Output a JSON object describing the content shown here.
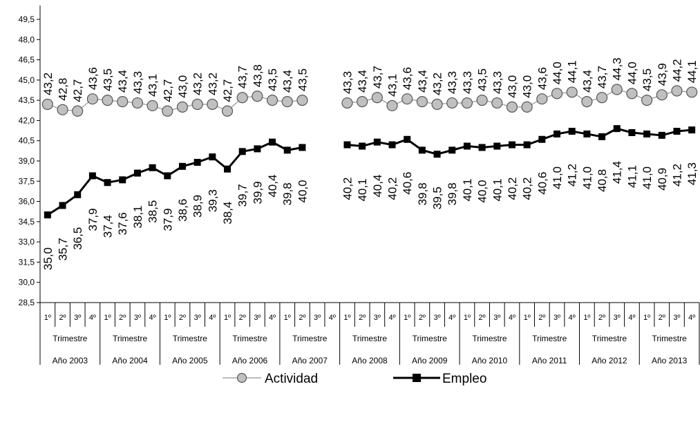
{
  "chart_data": {
    "type": "line",
    "title": "",
    "xlabel": "",
    "ylabel": "",
    "ylim": [
      28.5,
      49.5
    ],
    "yticks": [
      "28,5",
      "30,0",
      "31,5",
      "33,0",
      "34,5",
      "36,0",
      "37,5",
      "39,0",
      "40,5",
      "42,0",
      "43,5",
      "45,0",
      "46,5",
      "48,0",
      "49,5"
    ],
    "legend_position": "bottom",
    "grid": false,
    "quarter_labels": [
      "1º",
      "2º",
      "3º",
      "4º"
    ],
    "group_sublabel": "Trimestre",
    "years": [
      "Año 2003",
      "Año 2004",
      "Año 2005",
      "Año 2006",
      "Año 2007",
      "Año 2008",
      "Año 2009",
      "Año 2010",
      "Año 2011",
      "Año  2012",
      "Año  2013"
    ],
    "series": [
      {
        "name": "Actividad",
        "marker": "circle",
        "line_color": "#a6a6a6",
        "marker_fill": "#c0c0c0",
        "values": [
          43.2,
          42.8,
          42.7,
          43.6,
          43.5,
          43.4,
          43.3,
          43.1,
          42.7,
          43.0,
          43.2,
          43.2,
          42.7,
          43.7,
          43.8,
          43.5,
          43.4,
          43.5,
          null,
          null,
          43.3,
          43.4,
          43.7,
          43.1,
          43.6,
          43.4,
          43.2,
          43.3,
          43.3,
          43.5,
          43.3,
          43.0,
          43.0,
          43.6,
          44.0,
          44.1,
          43.4,
          43.7,
          44.3,
          44.0,
          43.5,
          43.9,
          44.2,
          44.1
        ],
        "labels": [
          "43,2",
          "42,8",
          "42,7",
          "43,6",
          "43,5",
          "43,4",
          "43,3",
          "43,1",
          "42,7",
          "43,0",
          "43,2",
          "43,2",
          "42,7",
          "43,7",
          "43,8",
          "43,5",
          "43,4",
          "43,5",
          "",
          "",
          "43,3",
          "43,4",
          "43,7",
          "43,1",
          "43,6",
          "43,4",
          "43,2",
          "43,3",
          "43,3",
          "43,5",
          "43,3",
          "43,0",
          "43,0",
          "43,6",
          "44,0",
          "44,1",
          "43,4",
          "43,7",
          "44,3",
          "44,0",
          "43,5",
          "43,9",
          "44,2",
          "44,1"
        ]
      },
      {
        "name": "Empleo",
        "marker": "square",
        "line_color": "#000000",
        "marker_fill": "#000000",
        "values": [
          35.0,
          35.7,
          36.5,
          37.9,
          37.4,
          37.6,
          38.1,
          38.5,
          37.9,
          38.6,
          38.9,
          39.3,
          38.4,
          39.7,
          39.9,
          40.4,
          39.8,
          40.0,
          null,
          null,
          40.2,
          40.1,
          40.4,
          40.2,
          40.6,
          39.8,
          39.5,
          39.8,
          40.1,
          40.0,
          40.1,
          40.2,
          40.2,
          40.6,
          41.0,
          41.2,
          41.0,
          40.8,
          41.4,
          41.1,
          41.0,
          40.9,
          41.2,
          41.3
        ],
        "labels": [
          "35,0",
          "35,7",
          "36,5",
          "37,9",
          "37,4",
          "37,6",
          "38,1",
          "38,5",
          "37,9",
          "38,6",
          "38,9",
          "39,3",
          "38,4",
          "39,7",
          "39,9",
          "40,4",
          "39,8",
          "40,0",
          "",
          "",
          "40,2",
          "40,1",
          "40,4",
          "40,2",
          "40,6",
          "39,8",
          "39,5",
          "39,8",
          "40,1",
          "40,0",
          "40,1",
          "40,2",
          "40,2",
          "40,6",
          "41,0",
          "41,2",
          "41,0",
          "40,8",
          "41,4",
          "41,1",
          "41,0",
          "40,9",
          "41,2",
          "41,3"
        ]
      }
    ]
  }
}
